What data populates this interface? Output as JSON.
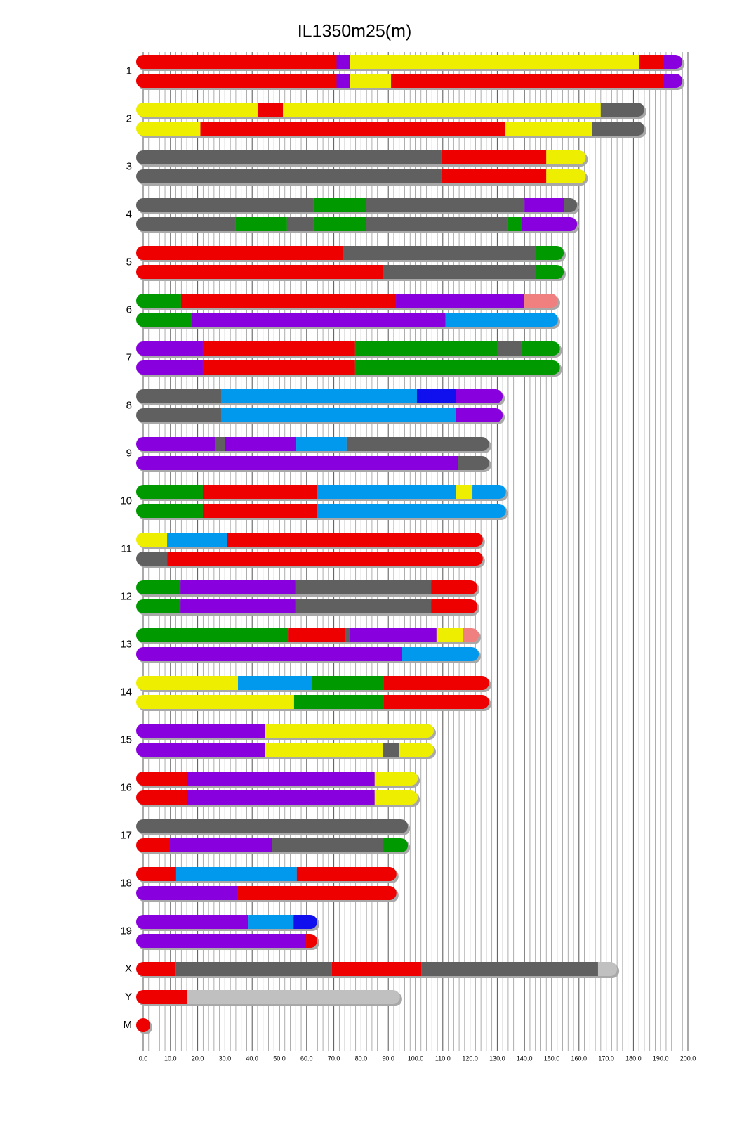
{
  "chart_data": {
    "type": "chromosome-painting",
    "title": "IL1350m25(m)",
    "xlim": [
      0,
      200
    ],
    "xticks": [
      {
        "value": 0,
        "label": "0.0"
      },
      {
        "value": 10,
        "label": "10.0"
      },
      {
        "value": 20,
        "label": "20.0"
      },
      {
        "value": 30,
        "label": "30.0"
      },
      {
        "value": 40,
        "label": "40.0"
      },
      {
        "value": 50,
        "label": "50.0"
      },
      {
        "value": 60,
        "label": "60.0"
      },
      {
        "value": 70,
        "label": "70.0"
      },
      {
        "value": 80,
        "label": "80.0"
      },
      {
        "value": 90,
        "label": "90.0"
      },
      {
        "value": 100,
        "label": "100.0"
      },
      {
        "value": 110,
        "label": "110.0"
      },
      {
        "value": 120,
        "label": "120.0"
      },
      {
        "value": 130,
        "label": "130.0"
      },
      {
        "value": 140,
        "label": "140.0"
      },
      {
        "value": 150,
        "label": "150.0"
      },
      {
        "value": 160,
        "label": "160.0"
      },
      {
        "value": 170,
        "label": "170.0"
      },
      {
        "value": 180,
        "label": "180.0"
      },
      {
        "value": 190,
        "label": "190.0"
      },
      {
        "value": 200,
        "label": "200.0"
      }
    ],
    "minor_xticks": [
      2,
      4,
      6,
      8,
      12,
      14,
      16,
      18,
      22,
      24,
      26,
      28,
      32,
      34,
      36,
      38,
      42,
      44,
      46,
      48,
      52,
      54,
      56,
      58,
      62,
      64,
      66,
      68,
      72,
      74,
      76,
      78,
      82,
      84,
      86,
      88,
      92,
      94,
      96,
      98,
      102,
      104,
      106,
      108,
      112,
      114,
      116,
      118,
      122,
      124,
      126,
      128,
      132,
      134,
      136,
      138,
      142,
      144,
      146,
      148,
      152,
      154,
      156,
      158,
      162,
      164,
      166,
      168,
      172,
      174,
      176,
      178,
      182,
      184,
      186,
      188,
      192,
      194,
      196,
      198
    ],
    "grid": true,
    "chromosomes": [
      {
        "name": "1",
        "haplotypes": [
          [
            [
              0,
              71,
              "#ee0000"
            ],
            [
              71,
              76,
              "#8800dd"
            ],
            [
              76,
              182,
              "#eeee00"
            ],
            [
              182,
              191,
              "#ee0000"
            ],
            [
              191,
              198,
              "#8800dd"
            ]
          ],
          [
            [
              0,
              71,
              "#ee0000"
            ],
            [
              71,
              76,
              "#8800dd"
            ],
            [
              76,
              91,
              "#eeee00"
            ],
            [
              91,
              191,
              "#ee0000"
            ],
            [
              191,
              198,
              "#8800dd"
            ]
          ]
        ]
      },
      {
        "name": "2",
        "haplotypes": [
          [
            [
              0,
              42,
              "#eeee00"
            ],
            [
              42,
              51.3,
              "#ee0000"
            ],
            [
              51.3,
              168,
              "#eeee00"
            ],
            [
              168,
              184,
              "#606060"
            ]
          ],
          [
            [
              0,
              21,
              "#eeee00"
            ],
            [
              21,
              133,
              "#ee0000"
            ],
            [
              133,
              164.7,
              "#eeee00"
            ],
            [
              164.7,
              184,
              "#606060"
            ]
          ]
        ]
      },
      {
        "name": "3",
        "haplotypes": [
          [
            [
              0,
              109.5,
              "#606060"
            ],
            [
              109.5,
              148,
              "#ee0000"
            ],
            [
              148,
              162.5,
              "#eeee00"
            ]
          ],
          [
            [
              0,
              109.5,
              "#606060"
            ],
            [
              109.5,
              148,
              "#ee0000"
            ],
            [
              148,
              162.5,
              "#eeee00"
            ]
          ]
        ]
      },
      {
        "name": "4",
        "haplotypes": [
          [
            [
              0,
              62.6,
              "#606060"
            ],
            [
              62.6,
              81.7,
              "#009900"
            ],
            [
              81.7,
              140,
              "#606060"
            ],
            [
              140,
              154.6,
              "#8800dd"
            ],
            [
              154.6,
              159.3,
              "#606060"
            ]
          ],
          [
            [
              0,
              34,
              "#606060"
            ],
            [
              34,
              52.8,
              "#009900"
            ],
            [
              52.8,
              62.6,
              "#606060"
            ],
            [
              62.6,
              81.7,
              "#009900"
            ],
            [
              81.7,
              134,
              "#606060"
            ],
            [
              134,
              139,
              "#009900"
            ],
            [
              139,
              159.3,
              "#8800dd"
            ]
          ]
        ]
      },
      {
        "name": "5",
        "haplotypes": [
          [
            [
              0,
              73.2,
              "#ee0000"
            ],
            [
              73.2,
              144.3,
              "#606060"
            ],
            [
              144.3,
              154.4,
              "#009900"
            ]
          ],
          [
            [
              0,
              88.1,
              "#ee0000"
            ],
            [
              88.1,
              144.3,
              "#606060"
            ],
            [
              144.3,
              154.4,
              "#009900"
            ]
          ]
        ]
      },
      {
        "name": "6",
        "haplotypes": [
          [
            [
              0,
              13.9,
              "#009900"
            ],
            [
              13.9,
              92.8,
              "#ee0000"
            ],
            [
              92.8,
              139.7,
              "#8800dd"
            ],
            [
              139.7,
              152.3,
              "#f08080"
            ]
          ],
          [
            [
              0,
              17.8,
              "#009900"
            ],
            [
              17.8,
              111,
              "#8800dd"
            ],
            [
              111,
              152.3,
              "#0099ee"
            ]
          ]
        ]
      },
      {
        "name": "7",
        "haplotypes": [
          [
            [
              0,
              21.9,
              "#8800dd"
            ],
            [
              21.9,
              77.8,
              "#ee0000"
            ],
            [
              77.8,
              129.9,
              "#009900"
            ],
            [
              129.9,
              138.7,
              "#606060"
            ],
            [
              138.7,
              153,
              "#009900"
            ]
          ],
          [
            [
              0,
              21.9,
              "#8800dd"
            ],
            [
              21.9,
              77.8,
              "#ee0000"
            ],
            [
              77.8,
              153,
              "#009900"
            ]
          ]
        ]
      },
      {
        "name": "8",
        "haplotypes": [
          [
            [
              0,
              28.6,
              "#606060"
            ],
            [
              28.6,
              100.5,
              "#0099ee"
            ],
            [
              100.5,
              114.7,
              "#1010ee"
            ],
            [
              114.7,
              132,
              "#8800dd"
            ]
          ],
          [
            [
              0,
              28.6,
              "#606060"
            ],
            [
              28.6,
              114.7,
              "#0099ee"
            ],
            [
              114.7,
              132,
              "#8800dd"
            ]
          ]
        ]
      },
      {
        "name": "9",
        "haplotypes": [
          [
            [
              0,
              26.3,
              "#8800dd"
            ],
            [
              26.3,
              29.9,
              "#606060"
            ],
            [
              29.9,
              56.2,
              "#8800dd"
            ],
            [
              56.2,
              74.7,
              "#0099ee"
            ],
            [
              74.7,
              127,
              "#606060"
            ]
          ],
          [
            [
              0,
              115.5,
              "#8800dd"
            ],
            [
              115.5,
              127,
              "#606060"
            ]
          ]
        ]
      },
      {
        "name": "10",
        "haplotypes": [
          [
            [
              0,
              21.9,
              "#009900"
            ],
            [
              21.9,
              63.9,
              "#ee0000"
            ],
            [
              63.9,
              114.7,
              "#0099ee"
            ],
            [
              114.7,
              120.9,
              "#eeee00"
            ],
            [
              120.9,
              133.2,
              "#0099ee"
            ]
          ],
          [
            [
              0,
              21.9,
              "#009900"
            ],
            [
              21.9,
              63.9,
              "#ee0000"
            ],
            [
              63.9,
              133.2,
              "#0099ee"
            ]
          ]
        ]
      },
      {
        "name": "11",
        "haplotypes": [
          [
            [
              0,
              8.8,
              "#eeee00"
            ],
            [
              8.8,
              30.7,
              "#0099ee"
            ],
            [
              30.7,
              124.7,
              "#ee0000"
            ]
          ],
          [
            [
              0,
              8.8,
              "#606060"
            ],
            [
              8.8,
              124.7,
              "#ee0000"
            ]
          ]
        ]
      },
      {
        "name": "12",
        "haplotypes": [
          [
            [
              0,
              13.7,
              "#009900"
            ],
            [
              13.7,
              55.9,
              "#8800dd"
            ],
            [
              55.9,
              105.7,
              "#606060"
            ],
            [
              105.7,
              122.7,
              "#ee0000"
            ]
          ],
          [
            [
              0,
              13.7,
              "#009900"
            ],
            [
              13.7,
              55.9,
              "#8800dd"
            ],
            [
              55.9,
              105.7,
              "#606060"
            ],
            [
              105.7,
              122.7,
              "#ee0000"
            ]
          ]
        ]
      },
      {
        "name": "13",
        "haplotypes": [
          [
            [
              0,
              53.4,
              "#009900"
            ],
            [
              53.4,
              74,
              "#ee0000"
            ],
            [
              74,
              75.8,
              "#606060"
            ],
            [
              75.8,
              107.7,
              "#8800dd"
            ],
            [
              107.7,
              117.3,
              "#eeee00"
            ],
            [
              117.3,
              123.2,
              "#f08080"
            ]
          ],
          [
            [
              0,
              95.1,
              "#8800dd"
            ],
            [
              95.1,
              123.2,
              "#0099ee"
            ]
          ]
        ]
      },
      {
        "name": "14",
        "haplotypes": [
          [
            [
              0,
              34.8,
              "#eeee00"
            ],
            [
              34.8,
              61.9,
              "#0099ee"
            ],
            [
              61.9,
              88.4,
              "#009900"
            ],
            [
              88.4,
              127,
              "#ee0000"
            ]
          ],
          [
            [
              0,
              55.4,
              "#eeee00"
            ],
            [
              55.4,
              88.4,
              "#009900"
            ],
            [
              88.4,
              127,
              "#ee0000"
            ]
          ]
        ]
      },
      {
        "name": "15",
        "haplotypes": [
          [
            [
              0,
              44.6,
              "#8800dd"
            ],
            [
              44.6,
              106.7,
              "#eeee00"
            ]
          ],
          [
            [
              0,
              44.6,
              "#8800dd"
            ],
            [
              44.6,
              88.1,
              "#eeee00"
            ],
            [
              88.1,
              94,
              "#606060"
            ],
            [
              94,
              106.7,
              "#eeee00"
            ]
          ]
        ]
      },
      {
        "name": "16",
        "haplotypes": [
          [
            [
              0,
              16,
              "#ee0000"
            ],
            [
              16,
              85,
              "#8800dd"
            ],
            [
              85,
              100.8,
              "#eeee00"
            ]
          ],
          [
            [
              0,
              16,
              "#ee0000"
            ],
            [
              16,
              85,
              "#8800dd"
            ],
            [
              85,
              100.8,
              "#eeee00"
            ]
          ]
        ]
      },
      {
        "name": "17",
        "haplotypes": [
          [
            [
              0,
              97.2,
              "#606060"
            ]
          ],
          [
            [
              0,
              9.8,
              "#ee0000"
            ],
            [
              9.8,
              47.4,
              "#8800dd"
            ],
            [
              47.4,
              87.9,
              "#606060"
            ],
            [
              87.9,
              97.2,
              "#009900"
            ]
          ]
        ]
      },
      {
        "name": "18",
        "haplotypes": [
          [
            [
              0,
              12.1,
              "#ee0000"
            ],
            [
              12.1,
              56.4,
              "#0099ee"
            ],
            [
              56.4,
              93,
              "#ee0000"
            ]
          ],
          [
            [
              0,
              34.3,
              "#8800dd"
            ],
            [
              34.3,
              93,
              "#ee0000"
            ]
          ]
        ]
      },
      {
        "name": "19",
        "haplotypes": [
          [
            [
              0,
              38.7,
              "#8800dd"
            ],
            [
              38.7,
              55.2,
              "#0099ee"
            ],
            [
              55.2,
              63.9,
              "#1010ee"
            ]
          ],
          [
            [
              0,
              59.8,
              "#8800dd"
            ],
            [
              59.8,
              63.9,
              "#ee0000"
            ]
          ]
        ]
      },
      {
        "name": "X",
        "haplotypes": [
          [
            [
              0,
              11.9,
              "#ee0000"
            ],
            [
              11.9,
              69.3,
              "#606060"
            ],
            [
              69.3,
              102.1,
              "#ee0000"
            ],
            [
              102.1,
              167,
              "#606060"
            ],
            [
              167,
              174,
              "#c0c0c0"
            ]
          ]
        ]
      },
      {
        "name": "Y",
        "haplotypes": [
          [
            [
              0,
              16,
              "#ee0000"
            ],
            [
              16,
              94.3,
              "#c0c0c0"
            ]
          ]
        ]
      },
      {
        "name": "M",
        "haplotypes": [
          [
            [
              0,
              0,
              "#ee0000"
            ]
          ]
        ]
      }
    ]
  }
}
